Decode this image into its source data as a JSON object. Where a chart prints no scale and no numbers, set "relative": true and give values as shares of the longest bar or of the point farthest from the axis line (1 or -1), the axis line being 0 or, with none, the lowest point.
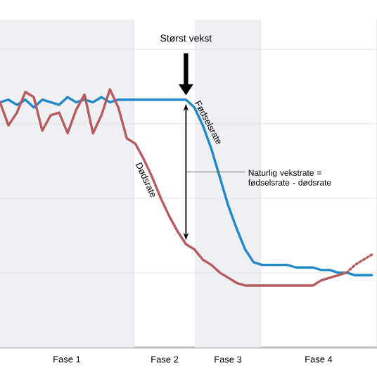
{
  "chart_data": {
    "type": "line",
    "relative": true,
    "categories": [
      null,
      null,
      null,
      null,
      null,
      null,
      null,
      null,
      null,
      null,
      null,
      null,
      null,
      null,
      null,
      null,
      null,
      null,
      null,
      null,
      null,
      null,
      null,
      null,
      null,
      null,
      null,
      null,
      null,
      null,
      null,
      null,
      null,
      null,
      null,
      null,
      null,
      null,
      null,
      null,
      null,
      null,
      null,
      null,
      null
    ],
    "series": [
      {
        "name": "Fødselsrate",
        "color": "#1f88c9",
        "values": [
          0.95,
          0.96,
          0.94,
          0.96,
          0.93,
          0.96,
          0.95,
          0.94,
          0.97,
          0.95,
          0.96,
          0.95,
          0.97,
          0.95,
          0.96,
          0.96,
          0.96,
          0.96,
          0.96,
          0.96,
          0.96,
          0.96,
          0.96,
          0.93,
          0.86,
          0.77,
          0.66,
          0.55,
          0.46,
          0.38,
          0.33,
          0.32,
          0.32,
          0.32,
          0.32,
          0.31,
          0.31,
          0.31,
          0.3,
          0.3,
          0.29,
          0.29,
          0.28,
          0.28,
          0.28
        ]
      },
      {
        "name": "Dødsrate",
        "color": "#b85b5e",
        "values": [
          0.95,
          0.86,
          0.91,
          0.99,
          0.97,
          0.84,
          0.9,
          0.91,
          0.83,
          0.92,
          0.98,
          0.83,
          0.9,
          1.0,
          0.93,
          0.81,
          0.79,
          0.73,
          0.66,
          0.58,
          0.51,
          0.45,
          0.4,
          0.38,
          0.34,
          0.32,
          0.29,
          0.27,
          0.25,
          0.24,
          0.24,
          0.24,
          0.24,
          0.24,
          0.24,
          0.24,
          0.24,
          0.24,
          0.26,
          0.27,
          0.28,
          0.29,
          null,
          null,
          null
        ]
      },
      {
        "color": "#b85b5e",
        "line_style": "dotted",
        "values": [
          null,
          null,
          null,
          null,
          null,
          null,
          null,
          null,
          null,
          null,
          null,
          null,
          null,
          null,
          null,
          null,
          null,
          null,
          null,
          null,
          null,
          null,
          null,
          null,
          null,
          null,
          null,
          null,
          null,
          null,
          null,
          null,
          null,
          null,
          null,
          null,
          null,
          null,
          null,
          null,
          null,
          0.29,
          0.32,
          0.34,
          0.36
        ]
      }
    ],
    "grid": true,
    "annotations": [
      "Størst vekst",
      "Naturlig vekstrate = fødselsrate - dødsrate",
      "Fase 1",
      "Fase 2",
      "Fase 3",
      "Fase 4"
    ]
  }
}
